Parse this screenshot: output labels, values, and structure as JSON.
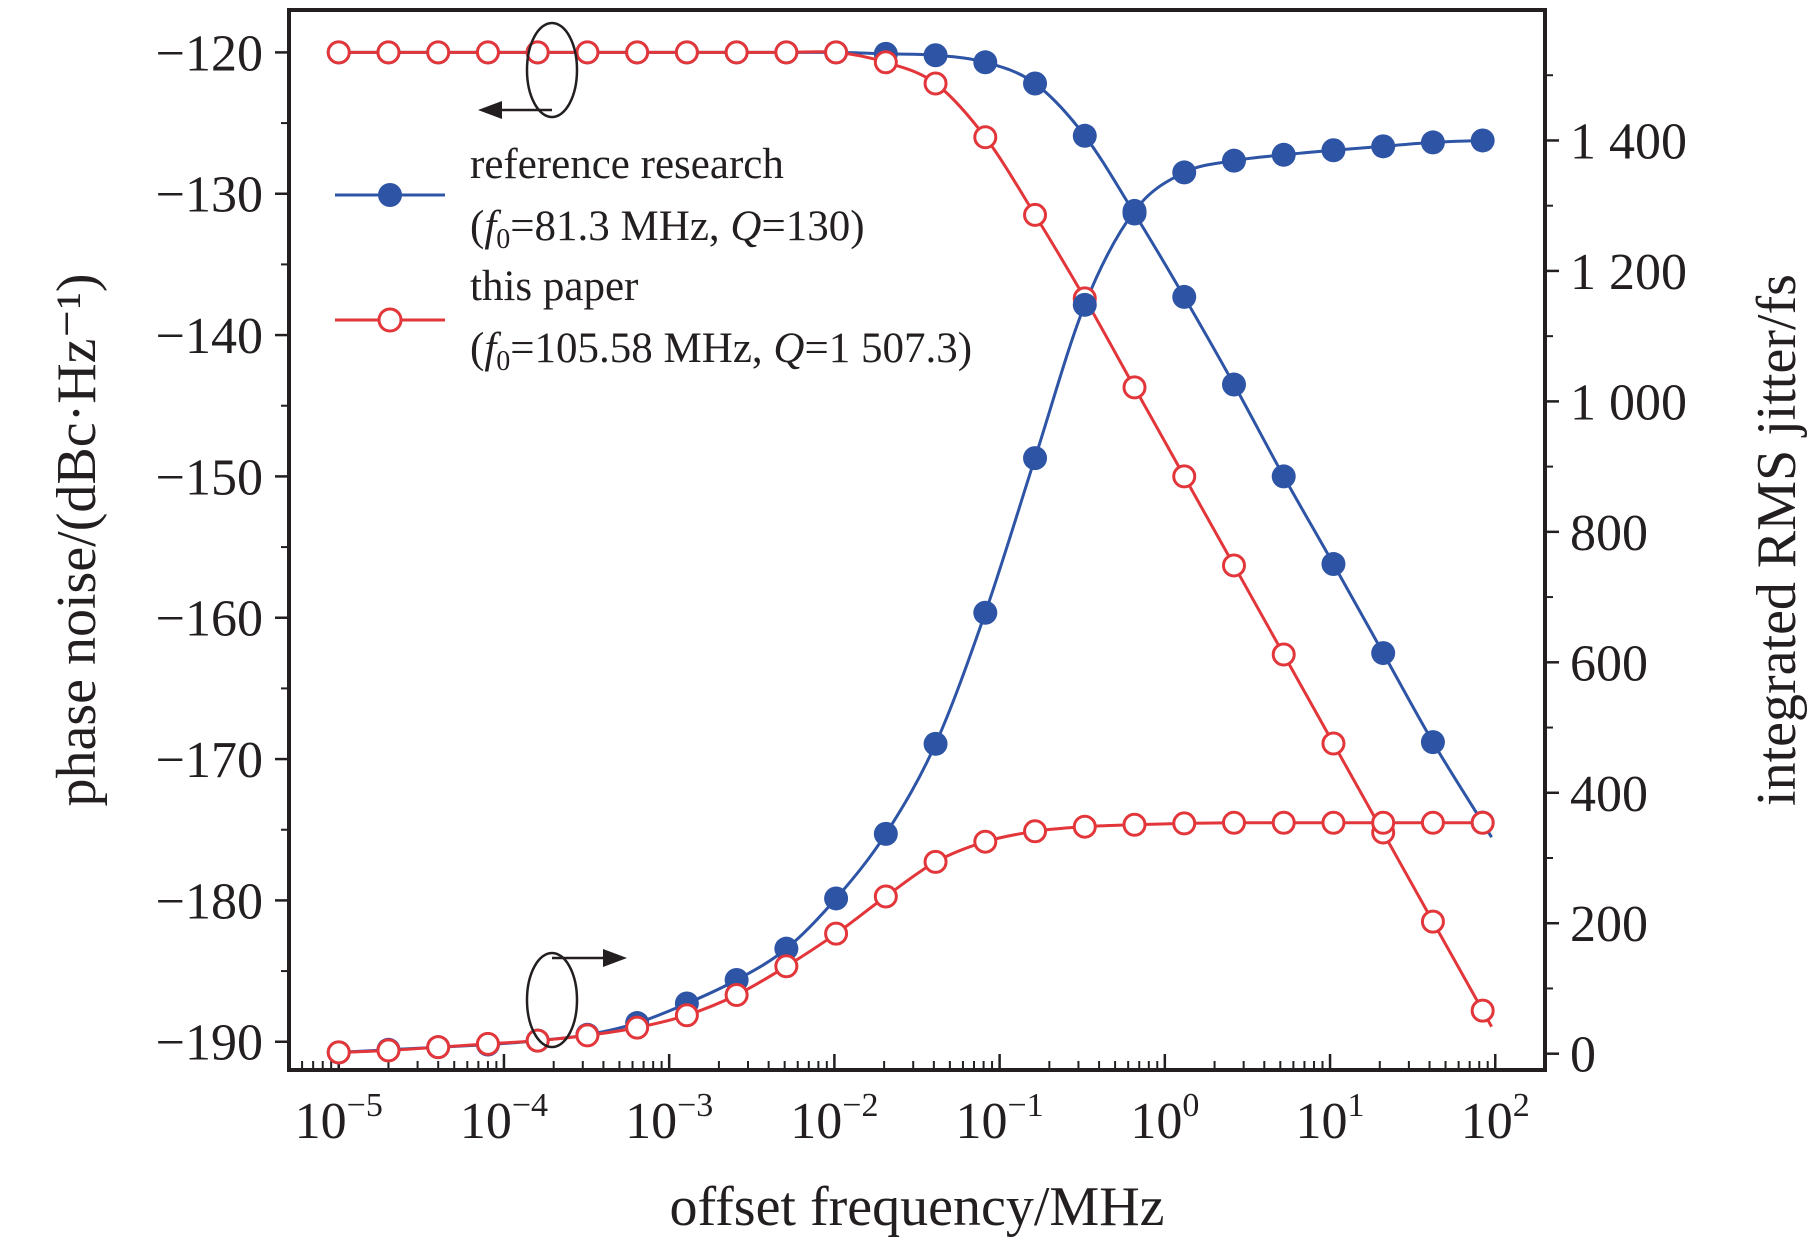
{
  "chart_data": {
    "type": "line",
    "x_scale": "log",
    "xlabel": "offset frequency/MHz",
    "ylabel_left": "phase noise/(dBc·Hz⁻¹)",
    "ylabel_right": "integrated RMS jitter/fs",
    "xlim": [
      5e-06,
      200
    ],
    "ylim_left": [
      -192,
      -117
    ],
    "ylim_right": [
      -25,
      1600
    ],
    "x_ticks": [
      1e-05,
      0.0001,
      0.001,
      0.01,
      0.1,
      1,
      10,
      100
    ],
    "x_tick_labels": [
      {
        "base": "10",
        "exp": "−5"
      },
      {
        "base": "10",
        "exp": "−4"
      },
      {
        "base": "10",
        "exp": "−3"
      },
      {
        "base": "10",
        "exp": "−2"
      },
      {
        "base": "10",
        "exp": "−1"
      },
      {
        "base": "10",
        "exp": "0"
      },
      {
        "base": "10",
        "exp": "1"
      },
      {
        "base": "10",
        "exp": "2"
      }
    ],
    "y_left_ticks": [
      -120,
      -130,
      -140,
      -150,
      -160,
      -170,
      -180,
      -190
    ],
    "y_left_tick_labels": [
      "−120",
      "−130",
      "−140",
      "−150",
      "−160",
      "−170",
      "−180",
      "−190"
    ],
    "y_right_ticks": [
      1400,
      1200,
      1000,
      800,
      600,
      400,
      200,
      0
    ],
    "y_right_tick_labels": [
      "1 400",
      "1 200",
      "1 000",
      "800",
      "600",
      "400",
      "200",
      "0"
    ],
    "grid": false,
    "legend_position": "upper-left",
    "legend": [
      {
        "line1": "reference research",
        "line2_pre": "(",
        "line2_f": "f",
        "line2_sub": "0",
        "line2_mid": "=81.3 MHz, ",
        "line2_q": "Q",
        "line2_post": "=130)",
        "color": "#2e54a6",
        "marker": "filled-circle"
      },
      {
        "line1": "this paper",
        "line2_pre": "(",
        "line2_f": "f",
        "line2_sub": "0",
        "line2_mid": "=105.58 MHz, ",
        "line2_q": "Q",
        "line2_post": "=1 507.3)",
        "color": "#e2363a",
        "marker": "open-circle"
      }
    ],
    "x": [
      1e-05,
      2e-05,
      4e-05,
      8e-05,
      0.00016,
      0.00032,
      0.00064,
      0.00128,
      0.00256,
      0.00512,
      0.01024,
      0.02048,
      0.04096,
      0.08192,
      0.16384,
      0.32768,
      0.65536,
      1.31072,
      2.62144,
      5.24288,
      10.48576,
      20.97152,
      41.94304,
      83.88608
    ],
    "series": [
      {
        "name": "reference research",
        "axis": "left",
        "color": "#2e54a6",
        "marker": "filled-circle",
        "values": [
          -120,
          -120,
          -120,
          -120,
          -120,
          -120,
          -120,
          -120,
          -120,
          -120,
          -120,
          -120.1,
          -120.2,
          -120.7,
          -122.2,
          -125.9,
          -131.4,
          -137.3,
          -143.5,
          -150.0,
          -156.2,
          -162.5,
          -168.8,
          -174.5
        ]
      },
      {
        "name": "this paper",
        "axis": "left",
        "color": "#e2363a",
        "marker": "open-circle",
        "values": [
          -120,
          -120,
          -120,
          -120,
          -120,
          -120,
          -120,
          -120,
          -120,
          -120,
          -120,
          -120.7,
          -122.2,
          -126.0,
          -131.5,
          -137.4,
          -143.7,
          -150.0,
          -156.3,
          -162.6,
          -168.9,
          -175.2,
          -181.5,
          -187.8
        ]
      },
      {
        "name": "reference research",
        "axis": "right",
        "color": "#2e54a6",
        "marker": "filled-circle",
        "values": [
          2,
          6,
          10,
          14,
          20,
          29,
          47,
          77,
          113,
          161,
          238,
          337,
          475,
          676,
          913,
          1148,
          1292,
          1351,
          1369,
          1378,
          1385,
          1391,
          1397,
          1400
        ]
      },
      {
        "name": "this paper",
        "axis": "right",
        "color": "#e2363a",
        "marker": "open-circle",
        "values": [
          2,
          5,
          10,
          15,
          20,
          28,
          40,
          59,
          90,
          134,
          184,
          241,
          294,
          325,
          341,
          348,
          351,
          353,
          354,
          354,
          354,
          354,
          354,
          354
        ]
      }
    ]
  }
}
